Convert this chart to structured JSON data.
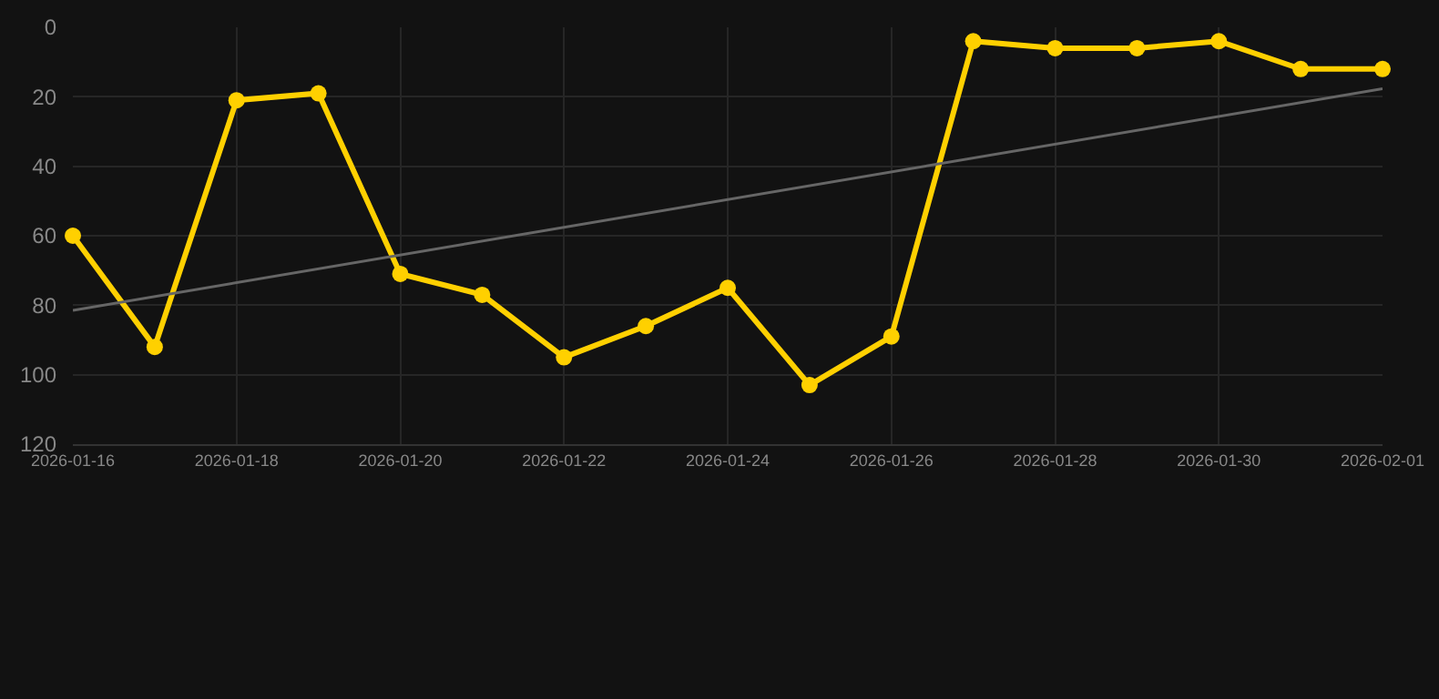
{
  "chart_data": {
    "type": "line",
    "x": [
      "2026-01-16",
      "2026-01-17",
      "2026-01-18",
      "2026-01-19",
      "2026-01-20",
      "2026-01-21",
      "2026-01-22",
      "2026-01-23",
      "2026-01-24",
      "2026-01-25",
      "2026-01-26",
      "2026-01-27",
      "2026-01-28",
      "2026-01-29",
      "2026-01-30",
      "2026-01-31",
      "2026-02-01"
    ],
    "series": [
      {
        "color": "#ffd000",
        "marker": "circle",
        "values": [
          60,
          92,
          21,
          19,
          71,
          77,
          95,
          86,
          75,
          103,
          89,
          4,
          6,
          6,
          4,
          12,
          12
        ]
      },
      {
        "type": "line",
        "color": "#666666",
        "marker": "none",
        "x": [
          "2026-01-16",
          "2026-02-01"
        ],
        "values": [
          81.5,
          17.7
        ]
      }
    ],
    "xlim": [
      "2026-01-16",
      "2026-02-01"
    ],
    "xticks": [
      "2026-01-16",
      "2026-01-18",
      "2026-01-20",
      "2026-01-22",
      "2026-01-24",
      "2026-01-26",
      "2026-01-28",
      "2026-01-30",
      "2026-02-01"
    ],
    "ylim": [
      120,
      0
    ],
    "yticks": [
      0,
      20,
      40,
      60,
      80,
      100,
      120
    ],
    "grid": true,
    "line_style": "solid"
  }
}
